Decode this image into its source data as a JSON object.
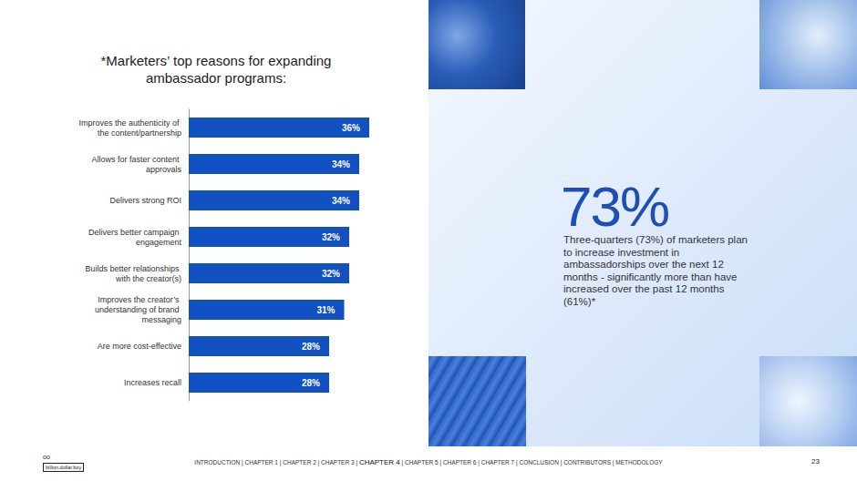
{
  "chart_data": {
    "type": "bar",
    "orientation": "horizontal",
    "title": "*Marketers’ top reasons for expanding ambassador programs:",
    "categories": [
      "Improves the authenticity of the content/partnership",
      "Allows for faster content approvals",
      "Delivers strong ROI",
      "Delivers better campaign engagement",
      "Builds better relationships with the creator(s)",
      "Improves the creator’s understanding of brand messaging",
      "Are more cost-effective",
      "Increases recall"
    ],
    "values": [
      36,
      34,
      34,
      32,
      32,
      31,
      28,
      28
    ],
    "value_labels": [
      "36%",
      "34%",
      "34%",
      "32%",
      "32%",
      "31%",
      "28%",
      "28%"
    ],
    "color": "#1050c0",
    "xlim": [
      0,
      36
    ],
    "grid": false,
    "data_labels": true,
    "tick_labels": "y"
  },
  "callout": {
    "figure": "73%",
    "text": "Three-quarters (73%) of marketers plan to increase investment in ambassadorships over the next 12 months - significantly more than have increased over the past 12 months (61%)*"
  },
  "footer": {
    "logo_mark": "oo",
    "logo": "billion.dollar.boy",
    "nav": [
      "INTRODUCTION",
      "CHAPTER 1",
      "CHAPTER 2",
      "CHAPTER 3",
      "CHAPTER 4",
      "CHAPTER 5",
      "CHAPTER 6",
      "CHAPTER 7",
      "CONCLUSION",
      "CONTRIBUTORS",
      "METHODOLOGY"
    ],
    "separator": " | ",
    "current": "CHAPTER 4",
    "page": "23"
  }
}
